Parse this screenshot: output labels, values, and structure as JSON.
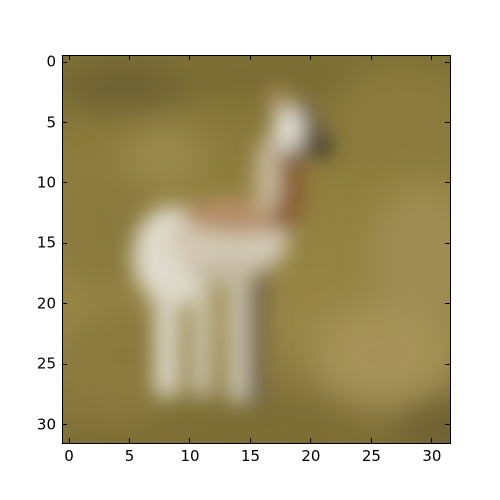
{
  "figure": {
    "x_ticks": [
      "0",
      "5",
      "10",
      "15",
      "20",
      "25",
      "30"
    ],
    "y_ticks": [
      "0",
      "5",
      "10",
      "15",
      "20",
      "25",
      "30"
    ],
    "image": {
      "description": "blurry low-resolution photo of a young antelope standing in grassland",
      "colors": {
        "grass_light": "#9f8c4e",
        "grass_mid": "#8c7a3f",
        "grass_dark": "#6f6231",
        "animal_white": "#e8e4da",
        "animal_brown": "#8a5d35",
        "animal_dark": "#3b3328"
      }
    }
  }
}
